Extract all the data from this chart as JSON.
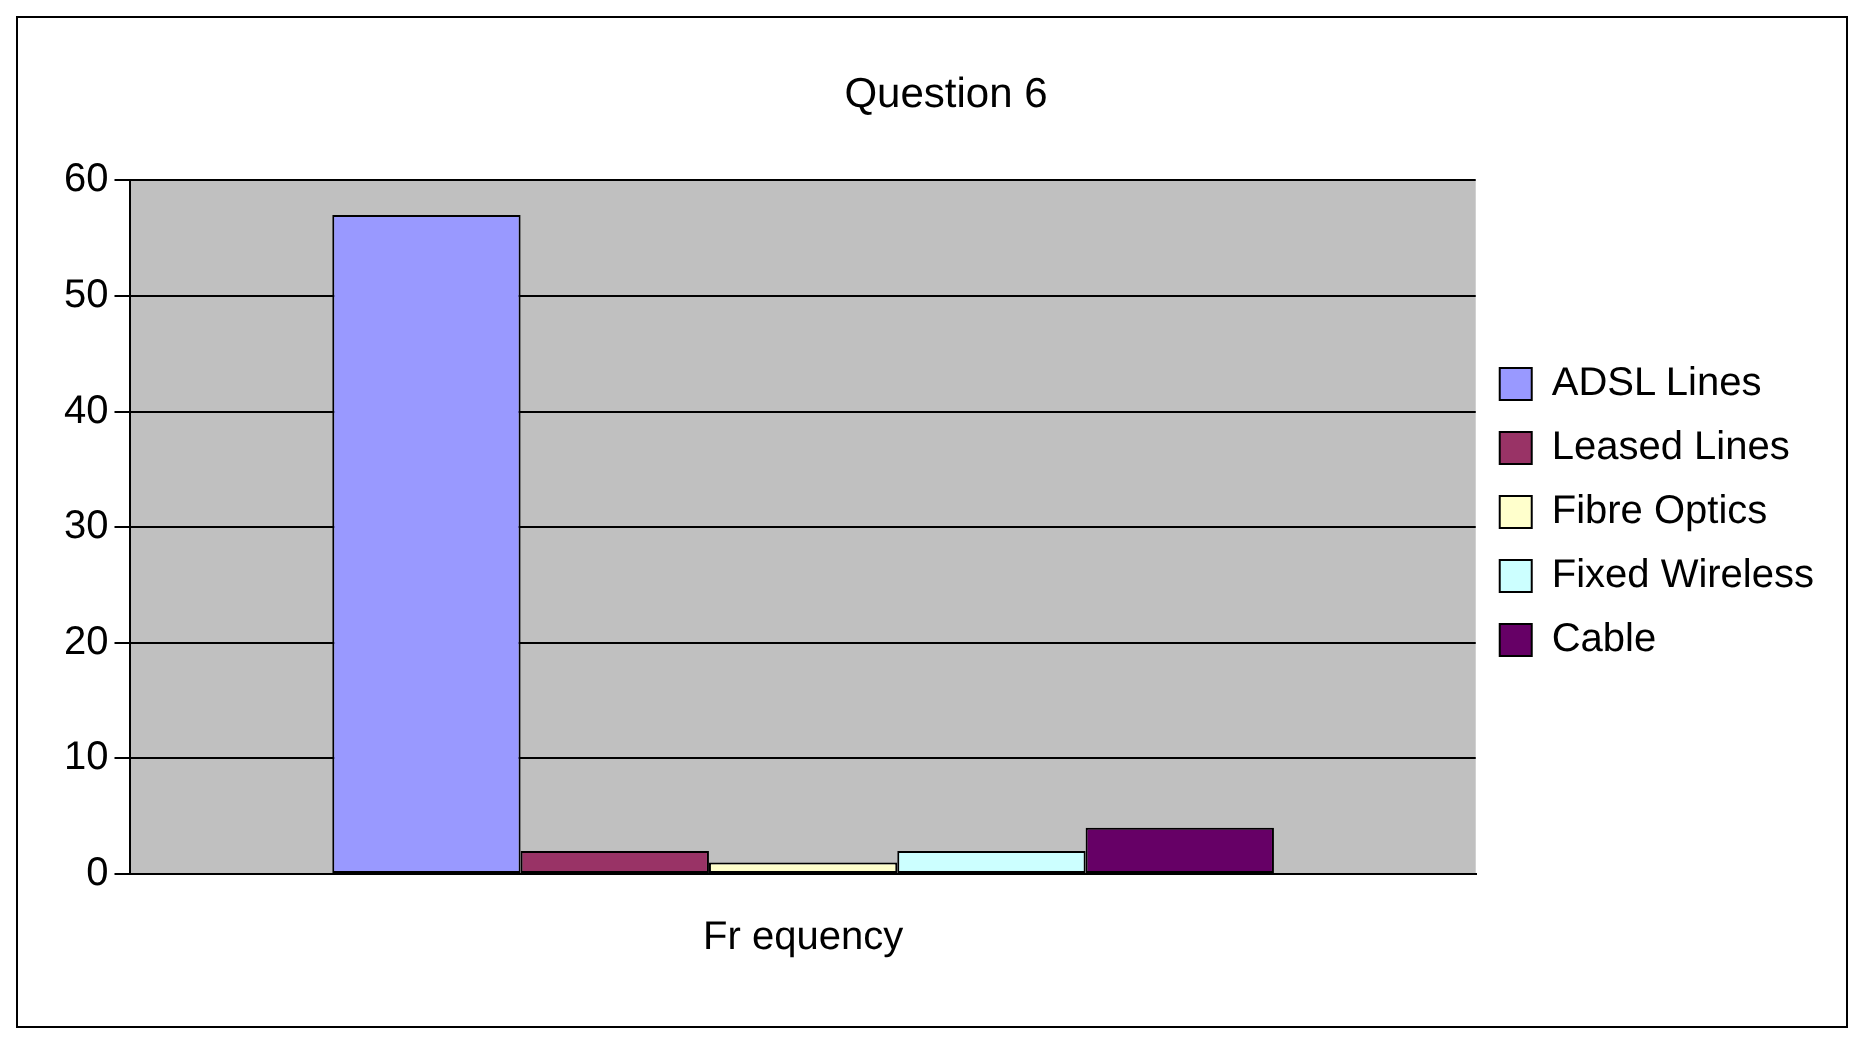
{
  "chart_data": {
    "type": "bar",
    "title": "Question 6",
    "categories": [
      "Fr equency"
    ],
    "series": [
      {
        "name": "ADSL Lines",
        "color": "#9999ff",
        "values": [
          57
        ]
      },
      {
        "name": "Leased Lines",
        "color": "#993366",
        "values": [
          2
        ]
      },
      {
        "name": "Fibre Optics",
        "color": "#ffffcc",
        "values": [
          1
        ]
      },
      {
        "name": "Fixed Wireless",
        "color": "#ccffff",
        "values": [
          2
        ]
      },
      {
        "name": "Cable",
        "color": "#660066",
        "values": [
          4
        ]
      }
    ],
    "ylim": [
      0,
      60
    ],
    "yticks": [
      0,
      10,
      20,
      30,
      40,
      50,
      60
    ],
    "grid": "y",
    "legend": "right"
  }
}
